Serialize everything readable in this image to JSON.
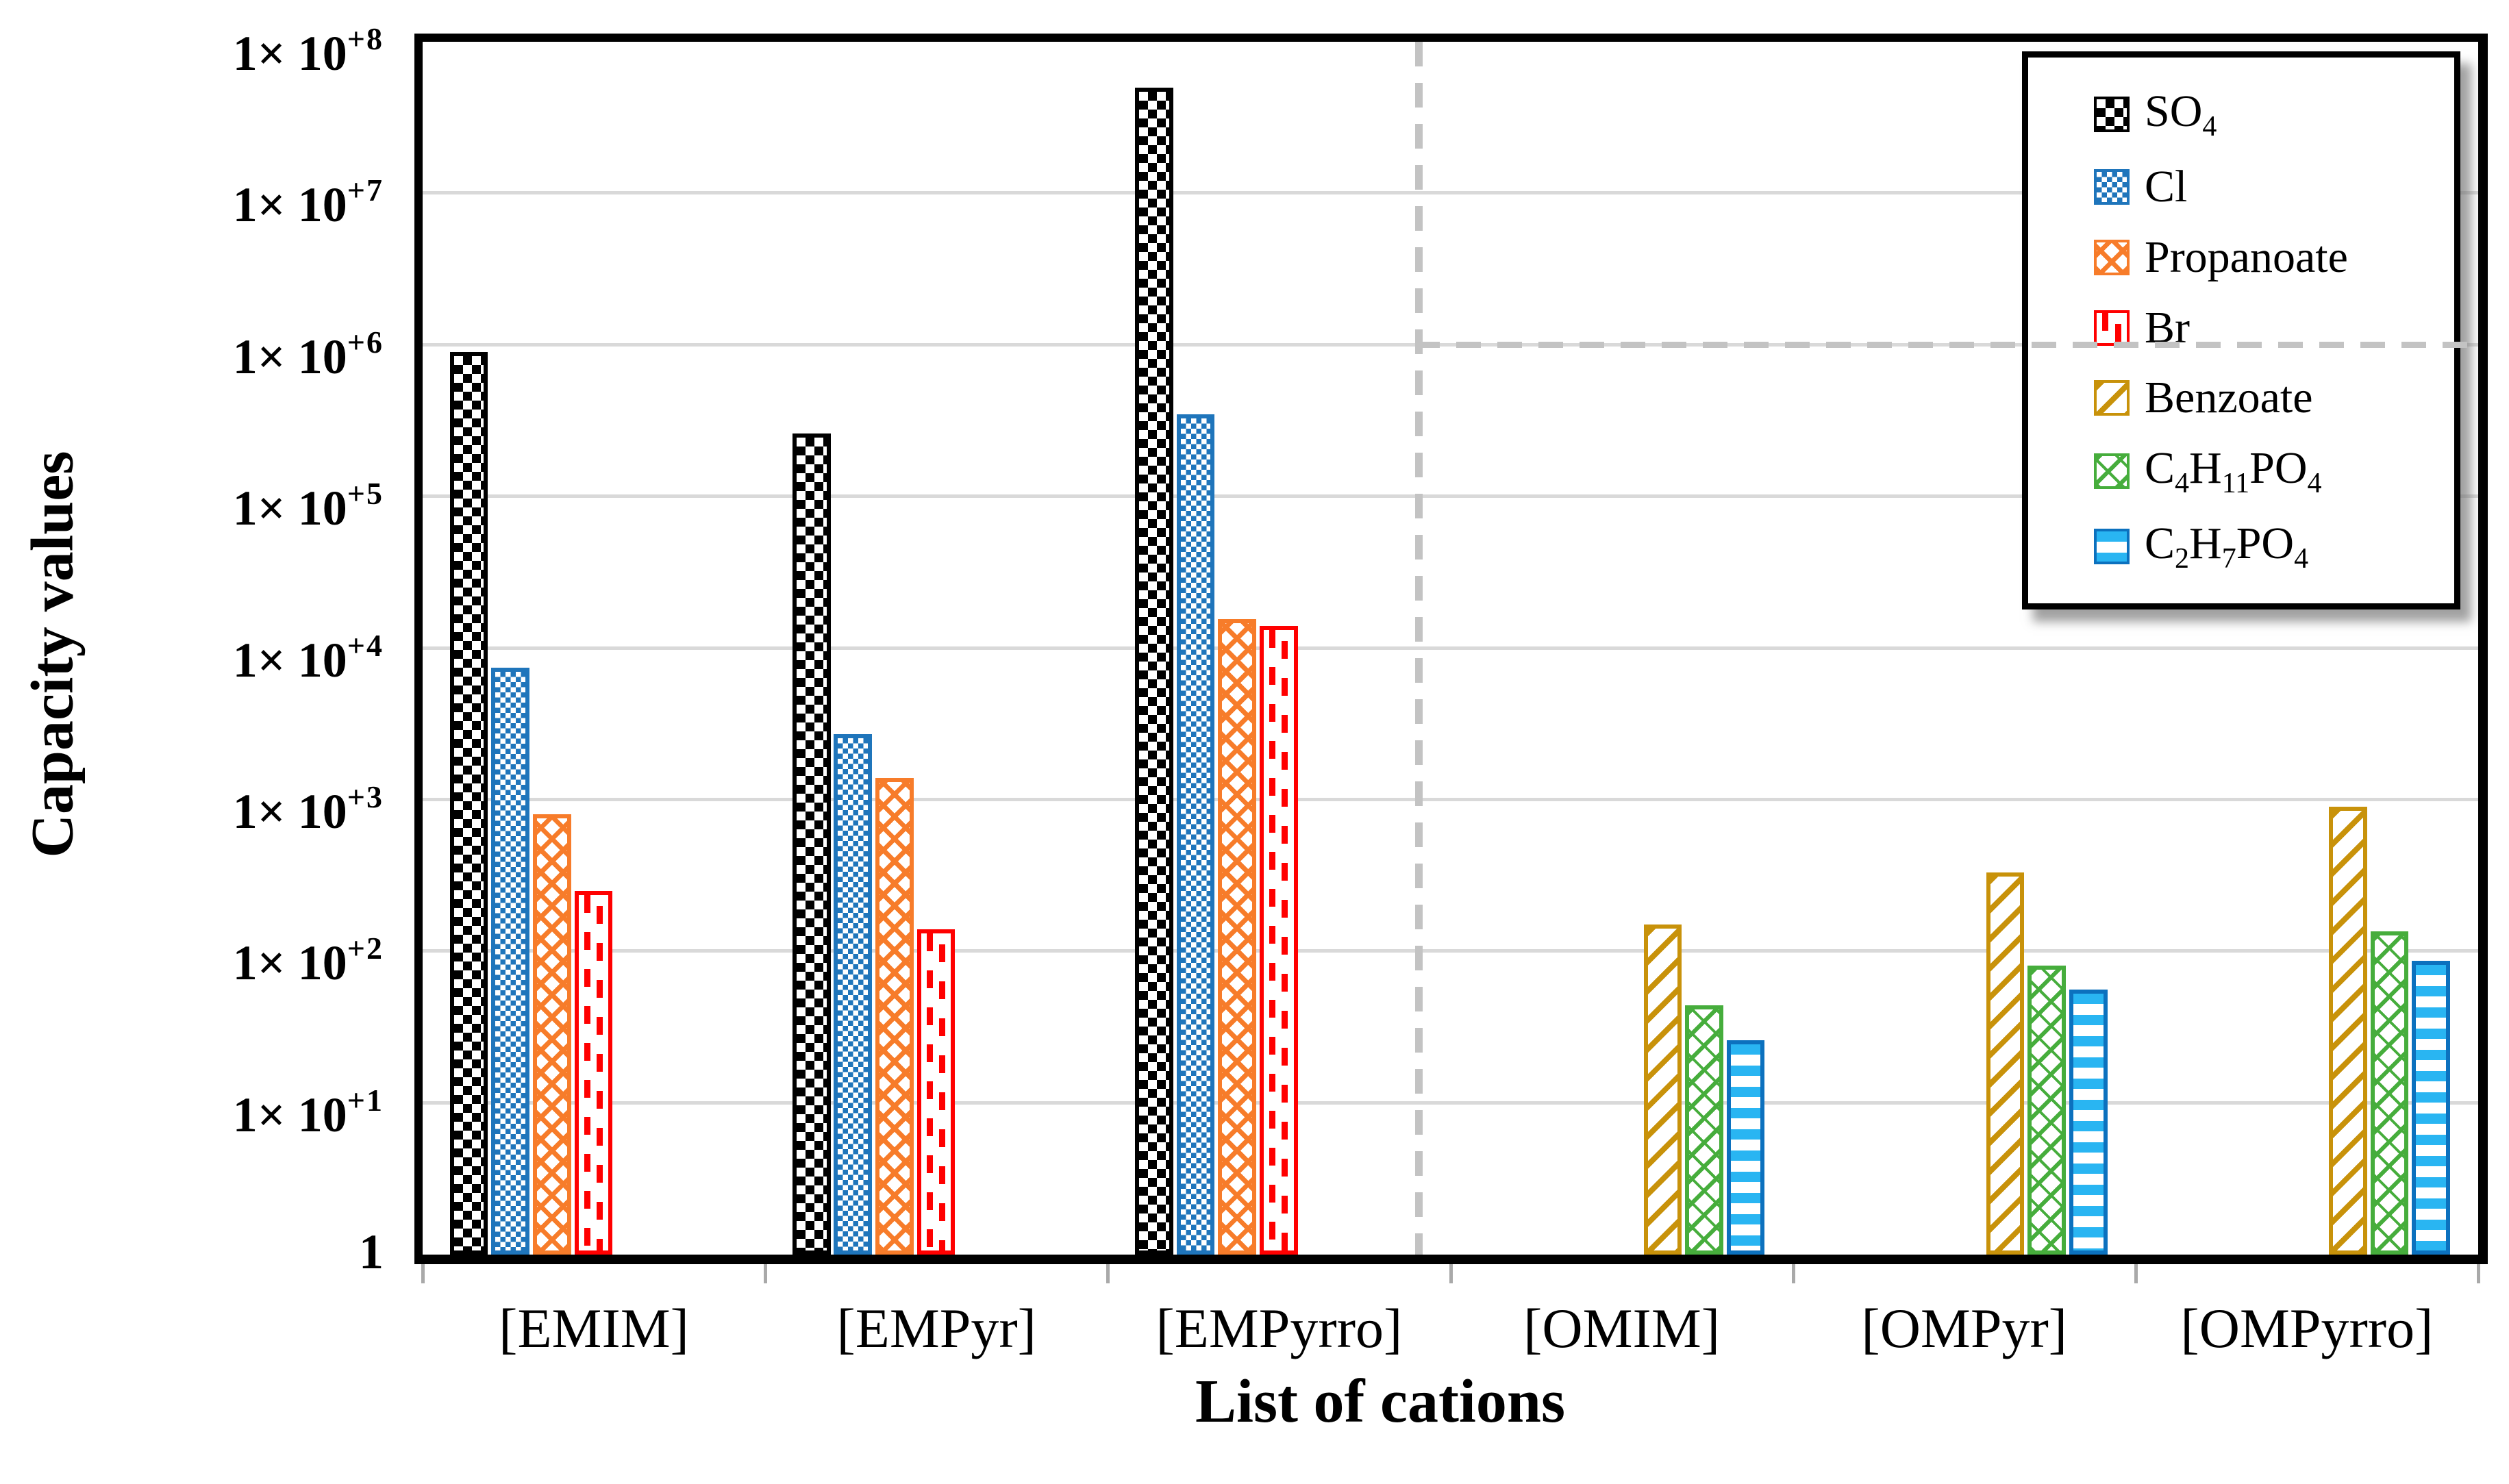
{
  "chart_data": {
    "type": "bar",
    "title": "",
    "xlabel": "List of cations",
    "ylabel": "Capacity values",
    "y_scale": "log10",
    "ylim": [
      1,
      100000000
    ],
    "grid": "horizontal",
    "legend_position": "top-right",
    "categories": [
      "[EMIM]",
      "[EMPyr]",
      "[EMPyrro]",
      "[OMIM]",
      "[OMPyr]",
      "[OMPyrro]"
    ],
    "y_ticks": [
      {
        "exp": 0,
        "base": "1",
        "sup": ""
      },
      {
        "exp": 1,
        "base": "1× 10",
        "sup": "+1"
      },
      {
        "exp": 2,
        "base": "1× 10",
        "sup": "+2"
      },
      {
        "exp": 3,
        "base": "1× 10",
        "sup": "+3"
      },
      {
        "exp": 4,
        "base": "1× 10",
        "sup": "+4"
      },
      {
        "exp": 5,
        "base": "1× 10",
        "sup": "+5"
      },
      {
        "exp": 6,
        "base": "1× 10",
        "sup": "+6"
      },
      {
        "exp": 7,
        "base": "1× 10",
        "sup": "+7"
      },
      {
        "exp": 8,
        "base": "1× 10",
        "sup": "+8"
      }
    ],
    "series": [
      {
        "name": "SO4",
        "pattern": "p-so4",
        "color": "#000000",
        "label_segments": [
          {
            "t": "SO",
            "sub": false
          },
          {
            "t": "4",
            "sub": true
          }
        ],
        "values": [
          900000,
          260000,
          50000000,
          null,
          null,
          null
        ]
      },
      {
        "name": "Cl",
        "pattern": "p-cl",
        "color": "#1F75BB",
        "label_segments": [
          {
            "t": "Cl",
            "sub": false
          }
        ],
        "values": [
          7400,
          2700,
          350000,
          null,
          null,
          null
        ]
      },
      {
        "name": "Propanoate",
        "pattern": "p-propanoate",
        "color": "#F77C2A",
        "label_segments": [
          {
            "t": "Propanoate",
            "sub": false
          }
        ],
        "values": [
          800,
          1400,
          15500,
          null,
          null,
          null
        ]
      },
      {
        "name": "Br",
        "pattern": "p-br",
        "color": "#FF0000",
        "label_segments": [
          {
            "t": "Br",
            "sub": false
          }
        ],
        "values": [
          250,
          140,
          14000,
          null,
          null,
          null
        ]
      },
      {
        "name": "Benzoate",
        "pattern": "p-benzoate",
        "color": "#C8920A",
        "label_segments": [
          {
            "t": "Benzoate",
            "sub": false
          }
        ],
        "values": [
          null,
          null,
          null,
          150,
          330,
          900
        ]
      },
      {
        "name": "C4H11PO4",
        "pattern": "p-c4",
        "color": "#46AD3C",
        "label_segments": [
          {
            "t": "C",
            "sub": false
          },
          {
            "t": "4",
            "sub": true
          },
          {
            "t": "H",
            "sub": false
          },
          {
            "t": "11",
            "sub": true
          },
          {
            "t": "PO",
            "sub": false
          },
          {
            "t": "4",
            "sub": true
          }
        ],
        "values": [
          null,
          null,
          null,
          44,
          81,
          135
        ]
      },
      {
        "name": "C2H7PO4",
        "pattern": "p-c2",
        "color": "#29B5F2",
        "border_color": "#0C71BE",
        "label_segments": [
          {
            "t": "C",
            "sub": false
          },
          {
            "t": "2",
            "sub": true
          },
          {
            "t": "H",
            "sub": false
          },
          {
            "t": "7",
            "sub": true
          },
          {
            "t": "PO",
            "sub": false
          },
          {
            "t": "4",
            "sub": true
          }
        ],
        "values": [
          null,
          null,
          null,
          26,
          56,
          87
        ]
      }
    ],
    "annotations": {
      "vertical_dashed_divider_between": [
        "[EMPyrro]",
        "[OMIM]"
      ],
      "horizontal_dashed_line_at_value": 1000000,
      "dashed_line_color": "#C3C3C3"
    },
    "style_colors": {
      "gridline": "#D9D9D9",
      "axis": "#000000",
      "background": "#FFFFFF"
    }
  }
}
